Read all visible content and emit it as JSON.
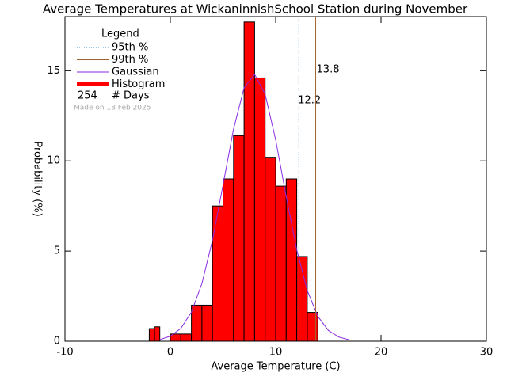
{
  "chart_data": {
    "type": "histogram",
    "title": "Average Temperatures at WickaninnishSchool Station during November",
    "x_label": "Average Temperature (C)",
    "y_label": "Probability (%)",
    "bins": [
      -2,
      -1.5,
      -1,
      0,
      1,
      2,
      3,
      4,
      5,
      6,
      7,
      8,
      9,
      10,
      11,
      12,
      13,
      14
    ],
    "values": [
      0.7,
      0.8,
      0,
      0.4,
      0.4,
      2,
      2,
      7.5,
      9,
      11.4,
      17.7,
      14.6,
      10.2,
      8.6,
      9,
      4.7,
      1.6
    ],
    "color": "#ff0000",
    "xlim": [
      -10,
      30
    ],
    "ylim": [
      0,
      18
    ],
    "xticks": [
      -10,
      0,
      10,
      20,
      30
    ],
    "yticks": [
      0,
      5,
      10,
      15
    ],
    "gaussian": {
      "name": "Gaussian",
      "color": "#8a2be2",
      "x": [
        -1,
        0,
        1,
        2,
        3,
        4,
        5,
        6,
        7,
        8,
        9,
        10,
        11,
        12,
        13,
        14,
        15,
        16,
        17
      ],
      "y": [
        0.09,
        0.28,
        0.71,
        1.61,
        3.2,
        5.6,
        8.66,
        11.76,
        14.05,
        14.8,
        13.7,
        11.17,
        8.02,
        5.07,
        2.81,
        1.38,
        0.6,
        0.23,
        0.08
      ]
    },
    "percentiles": [
      {
        "name": "95th %",
        "value": 12.2,
        "color": "#3a8fd0"
      },
      {
        "name": "99th %",
        "value": 13.8,
        "color": "#a0622d"
      }
    ],
    "legend_title": "Legend",
    "histogram_name": "Histogram",
    "days": {
      "value": 254,
      "label": "# Days"
    },
    "note": "Made on 18 Feb 2025"
  }
}
